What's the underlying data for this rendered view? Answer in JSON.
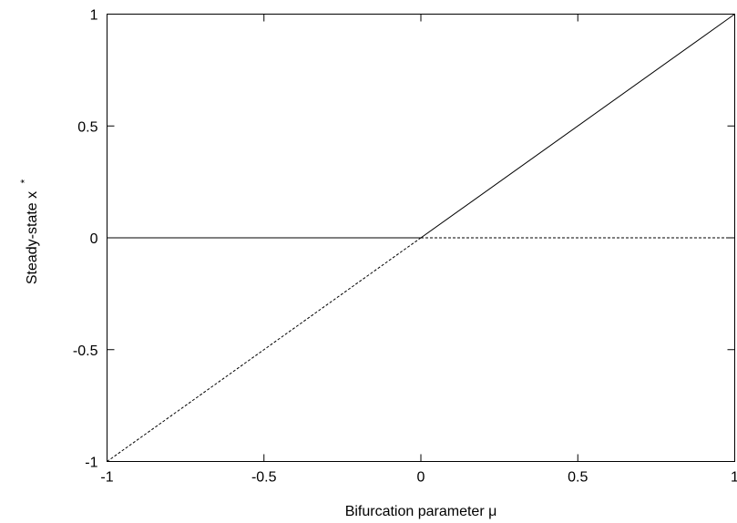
{
  "chart_data": {
    "type": "line",
    "xlabel": "Bifurcation parameter μ",
    "ylabel": "Steady-state x",
    "ylabel_superscript": "*",
    "xlim": [
      -1,
      1
    ],
    "ylim": [
      -1,
      1
    ],
    "xticks": [
      {
        "value": -1,
        "label": "-1"
      },
      {
        "value": -0.5,
        "label": "-0.5"
      },
      {
        "value": 0,
        "label": "0"
      },
      {
        "value": 0.5,
        "label": "0.5"
      },
      {
        "value": 1,
        "label": "1"
      }
    ],
    "yticks": [
      {
        "value": -1,
        "label": "-1"
      },
      {
        "value": -0.5,
        "label": "-0.5"
      },
      {
        "value": 0,
        "label": "0"
      },
      {
        "value": 0.5,
        "label": "0.5"
      },
      {
        "value": 1,
        "label": "1"
      }
    ],
    "grid": false,
    "legend": "none",
    "series": [
      {
        "style": "solid",
        "color": "#000000",
        "x": [
          -1,
          0
        ],
        "y": [
          0,
          0
        ]
      },
      {
        "style": "dashed",
        "color": "#000000",
        "x": [
          0,
          1
        ],
        "y": [
          0,
          0
        ]
      },
      {
        "style": "dashed",
        "color": "#000000",
        "x": [
          -1,
          0
        ],
        "y": [
          -1,
          0
        ]
      },
      {
        "style": "solid",
        "color": "#000000",
        "x": [
          0,
          1
        ],
        "y": [
          0,
          1
        ]
      }
    ]
  }
}
